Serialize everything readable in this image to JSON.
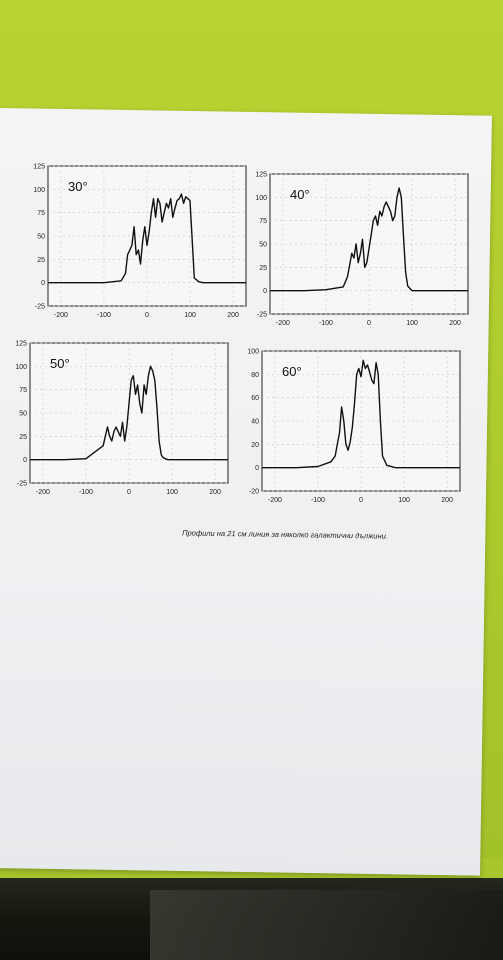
{
  "caption": "Профили на 21 см линия за няколко галактични дължини.",
  "chart_data": [
    {
      "type": "line",
      "title": "30°",
      "x": [
        -230,
        -150,
        -100,
        -60,
        -50,
        -45,
        -40,
        -35,
        -30,
        -25,
        -20,
        -15,
        -10,
        -5,
        0,
        5,
        10,
        15,
        20,
        25,
        30,
        35,
        40,
        45,
        50,
        55,
        60,
        65,
        70,
        75,
        80,
        85,
        90,
        95,
        100,
        110,
        120,
        130,
        150,
        230
      ],
      "y": [
        0,
        0,
        0,
        2,
        10,
        30,
        35,
        40,
        60,
        30,
        35,
        20,
        45,
        60,
        40,
        55,
        75,
        90,
        70,
        90,
        85,
        65,
        75,
        85,
        80,
        90,
        70,
        80,
        88,
        90,
        95,
        85,
        92,
        90,
        88,
        5,
        1,
        0,
        0,
        0
      ],
      "xlim": [
        -230,
        230
      ],
      "ylim": [
        -25,
        125
      ],
      "xticks": [
        "-200",
        "-100",
        "0",
        "100",
        "200"
      ],
      "yticks": [
        "-25",
        "0",
        "25",
        "50",
        "75",
        "100",
        "125"
      ]
    },
    {
      "type": "line",
      "title": "40°",
      "x": [
        -230,
        -150,
        -100,
        -60,
        -50,
        -40,
        -35,
        -30,
        -25,
        -20,
        -15,
        -10,
        -5,
        0,
        5,
        10,
        15,
        20,
        25,
        30,
        35,
        40,
        45,
        50,
        55,
        60,
        65,
        70,
        75,
        80,
        85,
        90,
        100,
        150,
        230
      ],
      "y": [
        0,
        0,
        1,
        4,
        15,
        40,
        35,
        50,
        30,
        40,
        55,
        25,
        30,
        45,
        60,
        75,
        80,
        70,
        85,
        80,
        90,
        95,
        90,
        85,
        75,
        80,
        100,
        110,
        100,
        60,
        20,
        5,
        0,
        0,
        0
      ],
      "xlim": [
        -230,
        230
      ],
      "ylim": [
        -25,
        125
      ],
      "xticks": [
        "-200",
        "-100",
        "0",
        "100",
        "200"
      ],
      "yticks": [
        "-25",
        "0",
        "25",
        "50",
        "75",
        "100",
        "125"
      ]
    },
    {
      "type": "line",
      "title": "50°",
      "x": [
        -230,
        -150,
        -100,
        -60,
        -55,
        -50,
        -45,
        -40,
        -35,
        -30,
        -25,
        -20,
        -15,
        -10,
        -5,
        0,
        5,
        10,
        15,
        20,
        25,
        30,
        35,
        40,
        45,
        50,
        55,
        60,
        65,
        70,
        75,
        80,
        90,
        150,
        230
      ],
      "y": [
        0,
        0,
        1,
        15,
        25,
        35,
        25,
        20,
        30,
        35,
        30,
        25,
        40,
        20,
        35,
        60,
        85,
        90,
        70,
        80,
        60,
        50,
        80,
        70,
        90,
        100,
        95,
        85,
        55,
        20,
        5,
        2,
        0,
        0,
        0
      ],
      "xlim": [
        -230,
        230
      ],
      "ylim": [
        -25,
        125
      ],
      "xticks": [
        "-200",
        "-100",
        "0",
        "100",
        "200"
      ],
      "yticks": [
        "-25",
        "0",
        "25",
        "50",
        "75",
        "100",
        "125"
      ]
    },
    {
      "type": "line",
      "title": "60°",
      "x": [
        -230,
        -150,
        -100,
        -70,
        -60,
        -55,
        -50,
        -45,
        -40,
        -35,
        -30,
        -25,
        -20,
        -15,
        -10,
        -5,
        0,
        5,
        10,
        15,
        20,
        25,
        30,
        35,
        40,
        45,
        50,
        60,
        80,
        150,
        230
      ],
      "y": [
        0,
        0,
        1,
        5,
        10,
        20,
        30,
        52,
        40,
        20,
        15,
        22,
        35,
        55,
        80,
        85,
        78,
        92,
        85,
        88,
        82,
        75,
        72,
        90,
        80,
        40,
        10,
        2,
        0,
        0,
        0
      ],
      "xlim": [
        -230,
        230
      ],
      "ylim": [
        -20,
        100
      ],
      "xticks": [
        "-200",
        "-100",
        "0",
        "100",
        "200"
      ],
      "yticks": [
        "-20",
        "0",
        "20",
        "40",
        "60",
        "80",
        "100"
      ]
    }
  ]
}
